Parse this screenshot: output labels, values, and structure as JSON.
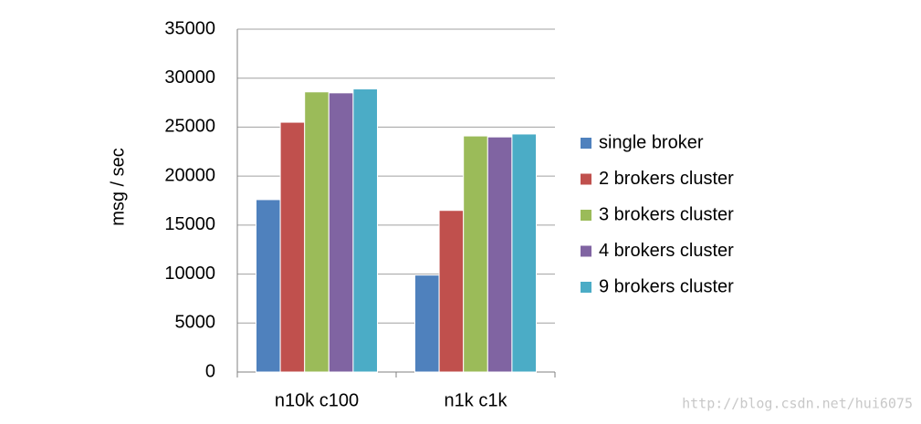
{
  "chart_data": {
    "type": "bar",
    "y_label": "msg / sec",
    "categories": [
      "n10k c100",
      "n1k c1k"
    ],
    "series": [
      {
        "name": "single broker",
        "color": "#4f81bd",
        "values": [
          17600,
          9900
        ]
      },
      {
        "name": "2 brokers cluster",
        "color": "#c0504d",
        "values": [
          25500,
          16500
        ]
      },
      {
        "name": "3 brokers cluster",
        "color": "#9bbb59",
        "values": [
          28600,
          24100
        ]
      },
      {
        "name": "4 brokers cluster",
        "color": "#8064a2",
        "values": [
          28500,
          24000
        ]
      },
      {
        "name": "9 brokers cluster",
        "color": "#4bacc6",
        "values": [
          28900,
          24300
        ]
      }
    ],
    "ylim": [
      0,
      35000
    ],
    "yticks": [
      0,
      5000,
      10000,
      15000,
      20000,
      25000,
      30000,
      35000
    ],
    "grid": true,
    "legend": "right",
    "watermark": "http://blog.csdn.net/hui6075"
  }
}
